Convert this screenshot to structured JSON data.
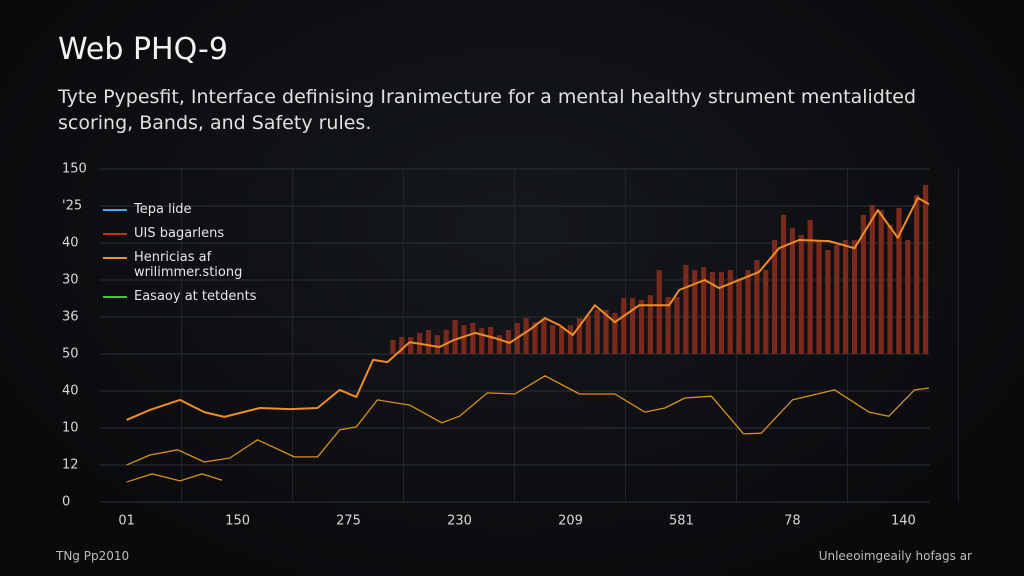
{
  "chart_data": {
    "type": "combo",
    "title": "Web PHQ-9",
    "subtitle": [
      "Tyte Pypesfit, Interface definising Iranimecture for a mental healthy strument mentalidted",
      "scoring, Bands, and Safety rules."
    ],
    "footer_left": "TNg Pp2010",
    "footer_right": "Unleeoimgeaily hofags ar",
    "xlim": [
      -0.24,
      7.24
    ],
    "xticks": [
      {
        "value": 0,
        "label": "01"
      },
      {
        "value": 1,
        "label": "150"
      },
      {
        "value": 2,
        "label": "275"
      },
      {
        "value": 3,
        "label": "230"
      },
      {
        "value": 4,
        "label": "209"
      },
      {
        "value": 5,
        "label": "581"
      },
      {
        "value": 6,
        "label": "78"
      },
      {
        "value": 7,
        "label": "140"
      }
    ],
    "ylim": [
      0,
      9
    ],
    "yticks": [
      {
        "value": 0,
        "label": "0"
      },
      {
        "value": 1,
        "label": "12"
      },
      {
        "value": 2,
        "label": "10"
      },
      {
        "value": 3,
        "label": "40"
      },
      {
        "value": 4,
        "label": "50"
      },
      {
        "value": 5,
        "label": "36"
      },
      {
        "value": 6,
        "label": "30"
      },
      {
        "value": 7,
        "label": "40"
      },
      {
        "value": 8,
        "label": "'25"
      },
      {
        "value": 9,
        "label": "150"
      }
    ],
    "grid": true,
    "legend": [
      {
        "label": "Tepa lide",
        "color": "#4aa3ff"
      },
      {
        "label": "UIS bagarlens",
        "color": "#d42a1a"
      },
      {
        "label": "Henricias af wrilimmer.stiong",
        "color": "#e8962a"
      },
      {
        "label": "Easaoy at tetdents",
        "color": "#4cc13a"
      }
    ],
    "series": [
      {
        "type": "bar",
        "color": "#7a2a1c",
        "x": [
          2.4,
          2.48,
          2.56,
          2.64,
          2.72,
          2.8,
          2.88,
          2.96,
          3.04,
          3.12,
          3.2,
          3.28,
          3.36,
          3.44,
          3.52,
          3.6,
          3.68,
          3.76,
          3.84,
          3.92,
          4.0,
          4.08,
          4.16,
          4.24,
          4.32,
          4.4,
          4.48,
          4.56,
          4.64,
          4.72,
          4.8,
          4.88,
          4.96,
          5.04,
          5.12,
          5.2,
          5.28,
          5.36,
          5.44,
          5.52,
          5.6,
          5.68,
          5.76,
          5.84,
          5.92,
          6.0,
          6.08,
          6.16,
          6.24,
          6.32,
          6.4,
          6.48,
          6.56,
          6.64,
          6.72,
          6.8,
          6.88,
          6.96,
          7.04,
          7.12,
          7.2
        ],
        "values": [
          4.38,
          4.46,
          4.46,
          4.57,
          4.65,
          4.51,
          4.65,
          4.92,
          4.78,
          4.84,
          4.7,
          4.73,
          4.51,
          4.65,
          4.84,
          4.97,
          4.86,
          4.92,
          4.78,
          4.73,
          4.78,
          4.97,
          5.05,
          5.19,
          5.19,
          5.11,
          5.51,
          5.51,
          5.46,
          5.59,
          6.27,
          5.54,
          5.54,
          6.41,
          6.27,
          6.35,
          6.22,
          6.22,
          6.27,
          6.05,
          6.27,
          6.54,
          6.27,
          7.08,
          7.76,
          7.41,
          7.22,
          7.62,
          7.08,
          6.81,
          6.95,
          7.08,
          7.08,
          7.76,
          8.03,
          7.89,
          7.49,
          7.95,
          7.08,
          8.3,
          8.57
        ]
      },
      {
        "type": "line",
        "color": "#f08c28",
        "x": [
          0,
          0.21,
          0.48,
          0.7,
          0.88,
          1.2,
          1.47,
          1.72,
          1.92,
          2.07,
          2.22,
          2.35,
          2.55,
          2.82,
          2.95,
          3.14,
          3.32,
          3.45,
          3.63,
          3.77,
          3.9,
          4.02,
          4.22,
          4.4,
          4.62,
          4.89,
          4.98,
          5.21,
          5.34,
          5.52,
          5.7,
          5.88,
          6.06,
          6.33,
          6.56,
          6.77,
          6.95,
          7.13,
          7.23
        ],
        "values": [
          2.22,
          2.49,
          2.76,
          2.43,
          2.3,
          2.54,
          2.51,
          2.54,
          3.03,
          2.84,
          3.84,
          3.78,
          4.32,
          4.19,
          4.38,
          4.57,
          4.43,
          4.3,
          4.65,
          4.97,
          4.78,
          4.51,
          5.32,
          4.86,
          5.32,
          5.32,
          5.73,
          6.0,
          5.78,
          6.0,
          6.22,
          6.86,
          7.08,
          7.05,
          6.86,
          7.89,
          7.14,
          8.22,
          8.05
        ]
      },
      {
        "type": "line",
        "color": "#d9901e",
        "x": [
          0,
          0.21,
          0.46,
          0.7,
          0.93,
          1.18,
          1.51,
          1.72,
          1.92,
          2.07,
          2.26,
          2.55,
          2.84,
          3.0,
          3.25,
          3.5,
          3.77,
          4.08,
          4.4,
          4.67,
          4.85,
          5.03,
          5.27,
          5.56,
          5.72,
          6.0,
          6.38,
          6.69,
          6.87,
          7.1,
          7.23
        ],
        "values": [
          1.0,
          1.27,
          1.41,
          1.08,
          1.19,
          1.68,
          1.22,
          1.22,
          1.95,
          2.03,
          2.76,
          2.62,
          2.14,
          2.32,
          2.95,
          2.92,
          3.41,
          2.92,
          2.92,
          2.43,
          2.54,
          2.81,
          2.86,
          1.84,
          1.86,
          2.76,
          3.03,
          2.43,
          2.32,
          3.03,
          3.08
        ]
      },
      {
        "type": "line",
        "color": "#d9901e",
        "x": [
          0,
          0.23,
          0.48,
          0.68,
          0.86
        ],
        "values": [
          0.54,
          0.76,
          0.57,
          0.76,
          0.59
        ]
      }
    ]
  }
}
